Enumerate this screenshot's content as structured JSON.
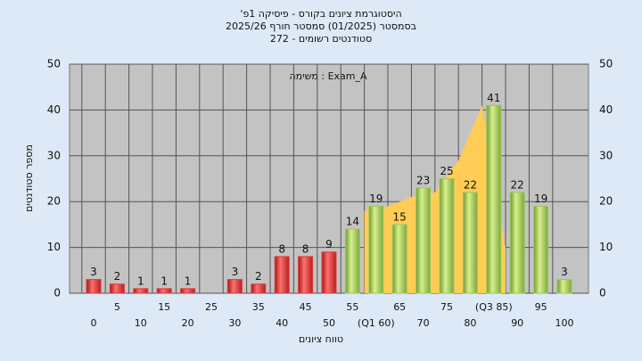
{
  "chart_data": {
    "type": "bar",
    "title": "'היסטוגרמת ציונים בקורס - פיסיקה 1פ",
    "subtitle": "בסמסטר  (01/2025)  סמסטר חורף 2025/26",
    "subtitle2": "סטודנטים רשומים - 272",
    "annotation": "משימה : Exam_A",
    "x_label": "טווח ציונים",
    "y_label": "מספר סטודנטים",
    "categories": [
      "0",
      "5",
      "10",
      "15",
      "20",
      "25",
      "30",
      "35",
      "40",
      "45",
      "50",
      "55",
      "(Q1 60)",
      "65",
      "70",
      "75",
      "80",
      "(Q3 85)",
      "90",
      "95",
      "100"
    ],
    "values": [
      3,
      2,
      1,
      1,
      1,
      0,
      3,
      2,
      8,
      8,
      9,
      14,
      19,
      15,
      23,
      25,
      22,
      41,
      22,
      19,
      3
    ],
    "value_labels": [
      "3",
      "2",
      "1",
      "1",
      "1",
      null,
      "3",
      "2",
      "8",
      "8",
      "9",
      "14",
      "19",
      "15",
      "23",
      "25",
      "22",
      "41",
      "22",
      "19",
      "3"
    ],
    "colors": [
      "#e03a3a",
      "#e03a3a",
      "#e03a3a",
      "#e03a3a",
      "#e03a3a",
      "#e03a3a",
      "#e03a3a",
      "#e03a3a",
      "#e03a3a",
      "#e03a3a",
      "#e03a3a",
      "#9cc95a",
      "#9cc95a",
      "#9cc95a",
      "#9cc95a",
      "#9cc95a",
      "#9cc95a",
      "#9cc95a",
      "#9cc95a",
      "#9cc95a",
      "#9cc95a"
    ],
    "band": {
      "color": "#ffcc55",
      "x": [
        11.5,
        12.5,
        13.5,
        14.5,
        15.5,
        16.5,
        17.5
      ],
      "values": [
        18,
        19,
        21,
        22,
        29,
        41,
        10
      ]
    },
    "ylim": [
      0,
      50
    ],
    "yticks": [
      0,
      10,
      20,
      30,
      40,
      50
    ],
    "grid": true
  }
}
